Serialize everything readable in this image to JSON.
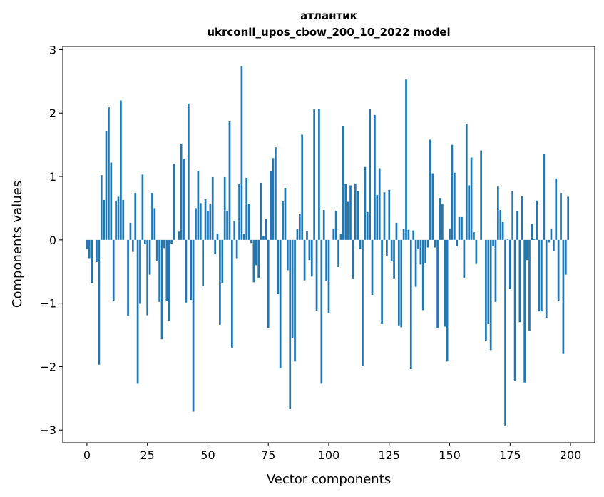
{
  "chart_data": {
    "type": "bar",
    "title_lines": [
      "атлантик",
      "ukrconll_upos_cbow_200_10_2022 model"
    ],
    "xlabel": "Vector components",
    "ylabel": "Components values",
    "xlim": [
      -10,
      210
    ],
    "ylim": [
      -3.2,
      3.05
    ],
    "xticks": [
      0,
      25,
      50,
      75,
      100,
      125,
      150,
      175,
      200
    ],
    "xtick_labels": [
      "0",
      "25",
      "50",
      "75",
      "100",
      "125",
      "150",
      "175",
      "200"
    ],
    "yticks": [
      -3,
      -2,
      -1,
      0,
      1,
      2,
      3
    ],
    "ytick_labels": [
      "−3",
      "−2",
      "−1",
      "0",
      "1",
      "2",
      "3"
    ],
    "grid": false,
    "bar_color": "#1f77b4",
    "values": [
      -0.15,
      -0.3,
      -0.68,
      0.0,
      -0.35,
      -1.97,
      1.02,
      0.63,
      1.71,
      2.09,
      1.22,
      -0.96,
      0.62,
      0.68,
      2.2,
      0.63,
      0.0,
      -1.2,
      0.27,
      -0.19,
      0.74,
      -2.27,
      -1.01,
      1.03,
      -0.07,
      -1.19,
      -0.55,
      0.74,
      0.5,
      -0.34,
      -0.98,
      -1.57,
      -0.13,
      -0.97,
      -1.28,
      -0.06,
      1.2,
      0.0,
      0.13,
      1.52,
      1.28,
      -0.99,
      2.15,
      -0.95,
      -2.71,
      0.5,
      1.09,
      0.58,
      -0.73,
      0.64,
      0.45,
      0.56,
      0.99,
      -0.23,
      0.1,
      -1.34,
      -0.68,
      0.99,
      0.46,
      1.87,
      -1.7,
      0.3,
      -0.3,
      0.88,
      2.74,
      0.1,
      0.98,
      0.57,
      -0.05,
      -0.67,
      -0.4,
      -0.61,
      0.9,
      0.06,
      0.33,
      -1.39,
      1.08,
      1.29,
      1.46,
      -0.86,
      -2.03,
      0.61,
      0.82,
      -0.48,
      -2.67,
      -1.55,
      -1.92,
      0.17,
      0.41,
      1.66,
      -0.64,
      0.14,
      -0.32,
      -0.58,
      2.06,
      -1.12,
      2.07,
      -2.27,
      0.47,
      -0.65,
      -1.16,
      0.0,
      0.18,
      0.46,
      -0.43,
      0.1,
      1.8,
      0.88,
      0.6,
      0.86,
      -0.62,
      0.89,
      0.77,
      -0.14,
      -1.99,
      1.15,
      0.44,
      2.07,
      -0.87,
      1.97,
      0.71,
      1.13,
      -1.33,
      0.75,
      -0.26,
      0.79,
      -0.34,
      -0.62,
      0.27,
      -1.35,
      -1.38,
      0.17,
      2.53,
      0.16,
      -2.04,
      0.15,
      -0.74,
      -0.15,
      -0.39,
      -1.11,
      -0.37,
      -0.12,
      1.58,
      1.05,
      -0.12,
      -1.4,
      0.66,
      0.56,
      -1.37,
      -1.92,
      0.18,
      1.5,
      1.06,
      -0.1,
      0.36,
      0.36,
      -0.61,
      1.83,
      0.86,
      1.3,
      0.12,
      -0.38,
      0.0,
      1.41,
      0.0,
      -1.59,
      -1.33,
      -1.74,
      -0.1,
      -0.98,
      0.84,
      0.47,
      0.28,
      -2.94,
      0.02,
      -0.78,
      0.77,
      -2.23,
      0.45,
      -1.3,
      0.69,
      -2.25,
      -0.32,
      -1.44,
      0.25,
      0.02,
      0.62,
      -1.13,
      -1.13,
      1.35,
      -1.23,
      -0.04,
      0.18,
      -0.18,
      0.97,
      -0.96,
      0.74,
      -1.8,
      -0.55,
      0.68
    ]
  }
}
